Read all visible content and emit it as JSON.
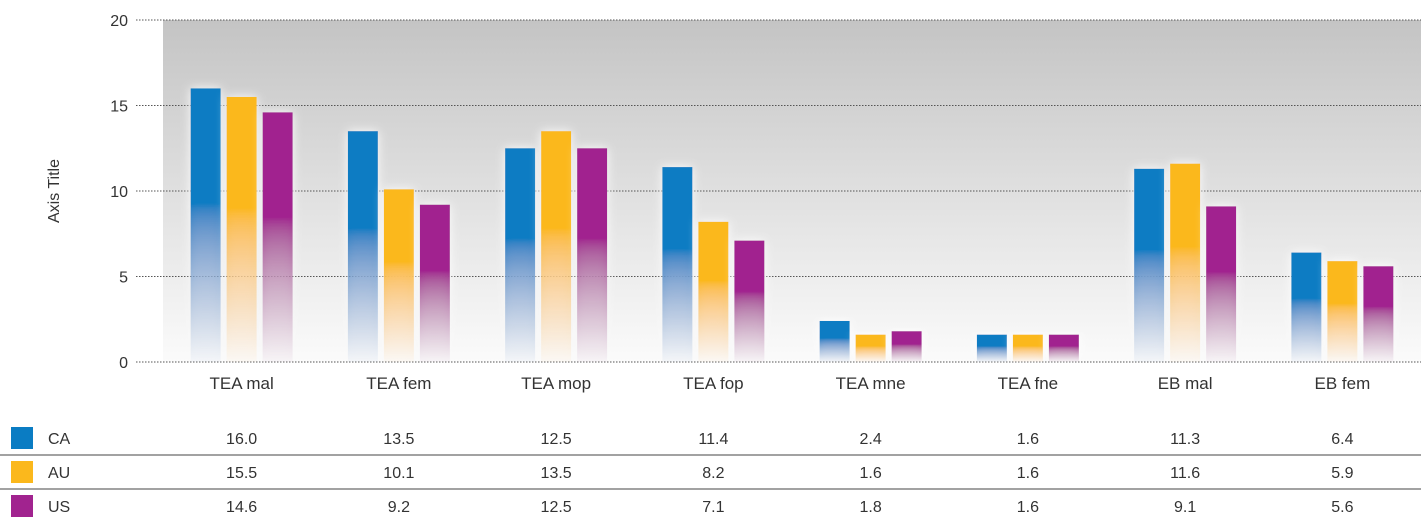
{
  "chart_data": {
    "type": "bar",
    "categories": [
      "TEA mal",
      "TEA fem",
      "TEA mop",
      "TEA fop",
      "TEA mne",
      "TEA fne",
      "EB mal",
      "EB fem"
    ],
    "series": [
      {
        "name": "CA",
        "color": "#0a7cc3",
        "values": [
          16.0,
          13.5,
          12.5,
          11.4,
          2.4,
          1.6,
          11.3,
          6.4
        ],
        "labels": [
          "16.0",
          "13.5",
          "12.5",
          "11.4",
          "2.4",
          "1.6",
          "11.3",
          "6.4"
        ]
      },
      {
        "name": "AU",
        "color": "#fbb81c",
        "values": [
          15.5,
          10.1,
          13.5,
          8.2,
          1.6,
          1.6,
          11.6,
          5.9
        ],
        "labels": [
          "15.5",
          "10.1",
          "13.5",
          "8.2",
          "1.6",
          "1.6",
          "11.6",
          "5.9"
        ]
      },
      {
        "name": "US",
        "color": "#a1238f",
        "values": [
          14.6,
          9.2,
          12.5,
          7.1,
          1.8,
          1.6,
          9.1,
          5.6
        ],
        "labels": [
          "14.6",
          "9.2",
          "12.5",
          "7.1",
          "1.8",
          "1.6",
          "9.1",
          "5.6"
        ]
      }
    ],
    "ylabel": "Axis Title",
    "ylim": [
      0,
      20
    ],
    "yticks": [
      0,
      5,
      10,
      15,
      20
    ],
    "grid": true,
    "legend": "data-table-below"
  }
}
